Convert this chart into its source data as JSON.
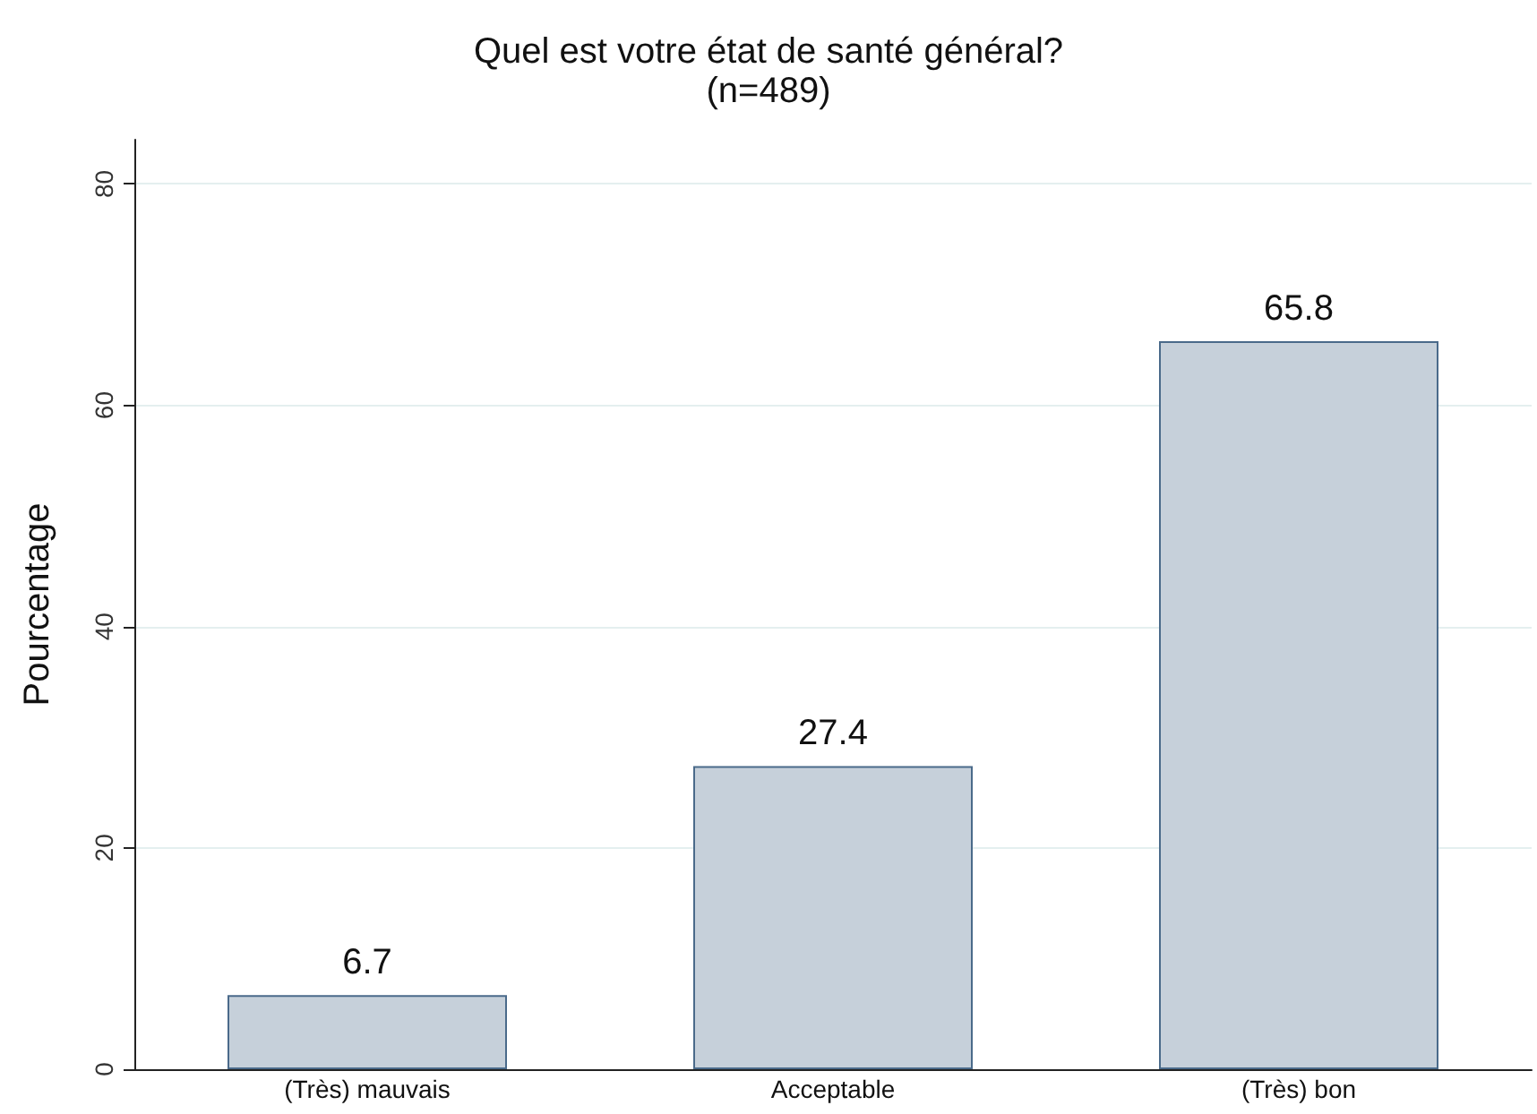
{
  "chart_data": {
    "type": "bar",
    "title": "Quel est votre état de santé général?",
    "subtitle": "(n=489)",
    "ylabel": "Pourcentage",
    "categories": [
      "(Très) mauvais",
      "Acceptable",
      "(Très) bon"
    ],
    "values": [
      6.7,
      27.4,
      65.8
    ],
    "color": "#c6d0da",
    "ylim": [
      0,
      84
    ],
    "yticks": [
      0,
      20,
      40,
      60,
      80
    ],
    "grid": "y",
    "data_labels": true
  }
}
